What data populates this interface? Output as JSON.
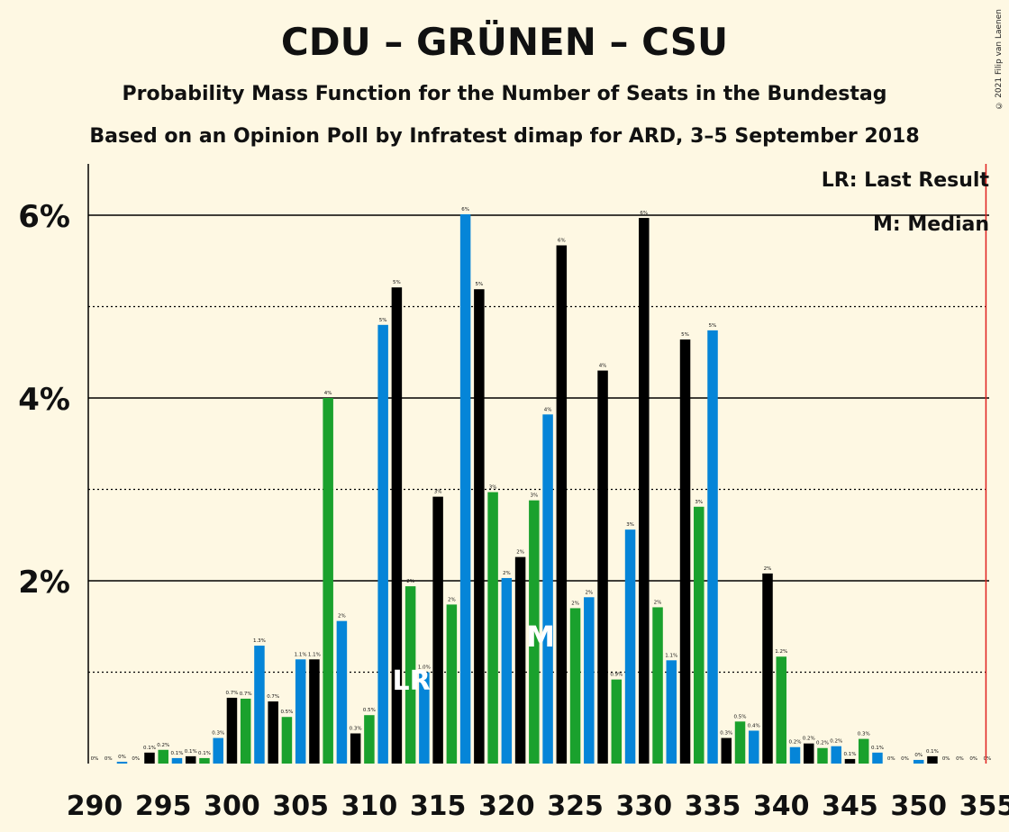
{
  "title": "CDU – GRÜNEN – CSU",
  "subtitle1": "Probability Mass Function for the Number of Seats in the Bundestag",
  "subtitle2": "Based on an Opinion Poll by Infratest dimap for ARD, 3–5 September 2018",
  "copyright": "© 2021 Filip van Laenen",
  "legend": {
    "lr": "LR: Last Result",
    "median": "M: Median"
  },
  "colors": {
    "background": "#fef8e3",
    "black": "#000000",
    "green": "#1aa12d",
    "blue": "#0585d8",
    "majority_line": "#e0201f"
  },
  "chart_data": {
    "type": "bar",
    "xlabel": "",
    "ylabel": "",
    "ylim": [
      0,
      6.5
    ],
    "yticks": [
      {
        "value": 2,
        "label": "2%"
      },
      {
        "value": 4,
        "label": "4%"
      },
      {
        "value": 6,
        "label": "6%"
      }
    ],
    "xticks": [
      290,
      295,
      300,
      305,
      310,
      315,
      320,
      325,
      330,
      335,
      340,
      345,
      350,
      355
    ],
    "majority_line": 355,
    "last_result": {
      "seat": 313,
      "label": "LR"
    },
    "median": {
      "seat": 323,
      "label": "M"
    },
    "bars": [
      {
        "seat": 290,
        "value": 0,
        "label": "0%",
        "color": "black"
      },
      {
        "seat": 291,
        "value": 0,
        "label": "0%",
        "color": "green"
      },
      {
        "seat": 292,
        "value": 0.02,
        "label": "0%",
        "color": "blue"
      },
      {
        "seat": 293,
        "value": 0,
        "label": "0%",
        "color": "black"
      },
      {
        "seat": 294,
        "value": 0.12,
        "label": "0.1%",
        "color": "black"
      },
      {
        "seat": 295,
        "value": 0.15,
        "label": "0.2%",
        "color": "green"
      },
      {
        "seat": 296,
        "value": 0.06,
        "label": "0.1%",
        "color": "blue"
      },
      {
        "seat": 297,
        "value": 0.08,
        "label": "0.1%",
        "color": "black"
      },
      {
        "seat": 298,
        "value": 0.06,
        "label": "0.1%",
        "color": "green"
      },
      {
        "seat": 299,
        "value": 0.28,
        "label": "0.3%",
        "color": "blue"
      },
      {
        "seat": 300,
        "value": 0.72,
        "label": "0.7%",
        "color": "black"
      },
      {
        "seat": 301,
        "value": 0.71,
        "label": "0.7%",
        "color": "green"
      },
      {
        "seat": 302,
        "value": 1.29,
        "label": "1.3%",
        "color": "blue"
      },
      {
        "seat": 303,
        "value": 0.68,
        "label": "0.7%",
        "color": "black"
      },
      {
        "seat": 304,
        "value": 0.51,
        "label": "0.5%",
        "color": "green"
      },
      {
        "seat": 305,
        "value": 1.14,
        "label": "1.1%",
        "color": "blue"
      },
      {
        "seat": 306,
        "value": 1.14,
        "label": "1.1%",
        "color": "black"
      },
      {
        "seat": 307,
        "value": 4.0,
        "label": "4%",
        "color": "green"
      },
      {
        "seat": 308,
        "value": 1.56,
        "label": "2%",
        "color": "blue"
      },
      {
        "seat": 309,
        "value": 0.33,
        "label": "0.3%",
        "color": "black"
      },
      {
        "seat": 310,
        "value": 0.53,
        "label": "0.5%",
        "color": "green"
      },
      {
        "seat": 311,
        "value": 4.8,
        "label": "5%",
        "color": "blue"
      },
      {
        "seat": 312,
        "value": 5.21,
        "label": "5%",
        "color": "black"
      },
      {
        "seat": 313,
        "value": 1.94,
        "label": "2%",
        "color": "green"
      },
      {
        "seat": 314,
        "value": 1.0,
        "label": "1.0%",
        "color": "blue"
      },
      {
        "seat": 315,
        "value": 2.92,
        "label": "3%",
        "color": "black"
      },
      {
        "seat": 316,
        "value": 1.74,
        "label": "2%",
        "color": "green"
      },
      {
        "seat": 317,
        "value": 6.01,
        "label": "6%",
        "color": "blue"
      },
      {
        "seat": 318,
        "value": 5.19,
        "label": "5%",
        "color": "black"
      },
      {
        "seat": 319,
        "value": 2.97,
        "label": "3%",
        "color": "green"
      },
      {
        "seat": 320,
        "value": 2.03,
        "label": "2%",
        "color": "blue"
      },
      {
        "seat": 321,
        "value": 2.26,
        "label": "2%",
        "color": "black"
      },
      {
        "seat": 322,
        "value": 2.88,
        "label": "3%",
        "color": "green"
      },
      {
        "seat": 323,
        "value": 3.82,
        "label": "4%",
        "color": "blue"
      },
      {
        "seat": 324,
        "value": 5.67,
        "label": "6%",
        "color": "black"
      },
      {
        "seat": 325,
        "value": 1.7,
        "label": "2%",
        "color": "green"
      },
      {
        "seat": 326,
        "value": 1.82,
        "label": "2%",
        "color": "blue"
      },
      {
        "seat": 327,
        "value": 4.3,
        "label": "4%",
        "color": "black"
      },
      {
        "seat": 328,
        "value": 0.92,
        "label": "0.9%",
        "color": "green"
      },
      {
        "seat": 329,
        "value": 2.56,
        "label": "3%",
        "color": "blue"
      },
      {
        "seat": 330,
        "value": 5.97,
        "label": "6%",
        "color": "black"
      },
      {
        "seat": 331,
        "value": 1.71,
        "label": "2%",
        "color": "green"
      },
      {
        "seat": 332,
        "value": 1.13,
        "label": "1.1%",
        "color": "blue"
      },
      {
        "seat": 333,
        "value": 4.64,
        "label": "5%",
        "color": "black"
      },
      {
        "seat": 334,
        "value": 2.81,
        "label": "3%",
        "color": "green"
      },
      {
        "seat": 335,
        "value": 4.74,
        "label": "5%",
        "color": "blue"
      },
      {
        "seat": 336,
        "value": 0.28,
        "label": "0.3%",
        "color": "black"
      },
      {
        "seat": 337,
        "value": 0.46,
        "label": "0.5%",
        "color": "green"
      },
      {
        "seat": 338,
        "value": 0.36,
        "label": "0.4%",
        "color": "blue"
      },
      {
        "seat": 339,
        "value": 2.08,
        "label": "2%",
        "color": "black"
      },
      {
        "seat": 340,
        "value": 1.17,
        "label": "1.2%",
        "color": "green"
      },
      {
        "seat": 341,
        "value": 0.18,
        "label": "0.2%",
        "color": "blue"
      },
      {
        "seat": 342,
        "value": 0.22,
        "label": "0.2%",
        "color": "black"
      },
      {
        "seat": 343,
        "value": 0.17,
        "label": "0.2%",
        "color": "green"
      },
      {
        "seat": 344,
        "value": 0.19,
        "label": "0.2%",
        "color": "blue"
      },
      {
        "seat": 345,
        "value": 0.05,
        "label": "0.1%",
        "color": "black"
      },
      {
        "seat": 346,
        "value": 0.27,
        "label": "0.3%",
        "color": "green"
      },
      {
        "seat": 347,
        "value": 0.12,
        "label": "0.1%",
        "color": "blue"
      },
      {
        "seat": 348,
        "value": 0,
        "label": "0%",
        "color": "black"
      },
      {
        "seat": 349,
        "value": 0,
        "label": "0%",
        "color": "green"
      },
      {
        "seat": 350,
        "value": 0.04,
        "label": "0%",
        "color": "blue"
      },
      {
        "seat": 351,
        "value": 0.08,
        "label": "0.1%",
        "color": "black"
      },
      {
        "seat": 352,
        "value": 0,
        "label": "0%",
        "color": "green"
      },
      {
        "seat": 353,
        "value": 0,
        "label": "0%",
        "color": "blue"
      },
      {
        "seat": 354,
        "value": 0,
        "label": "0%",
        "color": "black"
      },
      {
        "seat": 355,
        "value": 0,
        "label": "0%",
        "color": "green"
      }
    ]
  }
}
